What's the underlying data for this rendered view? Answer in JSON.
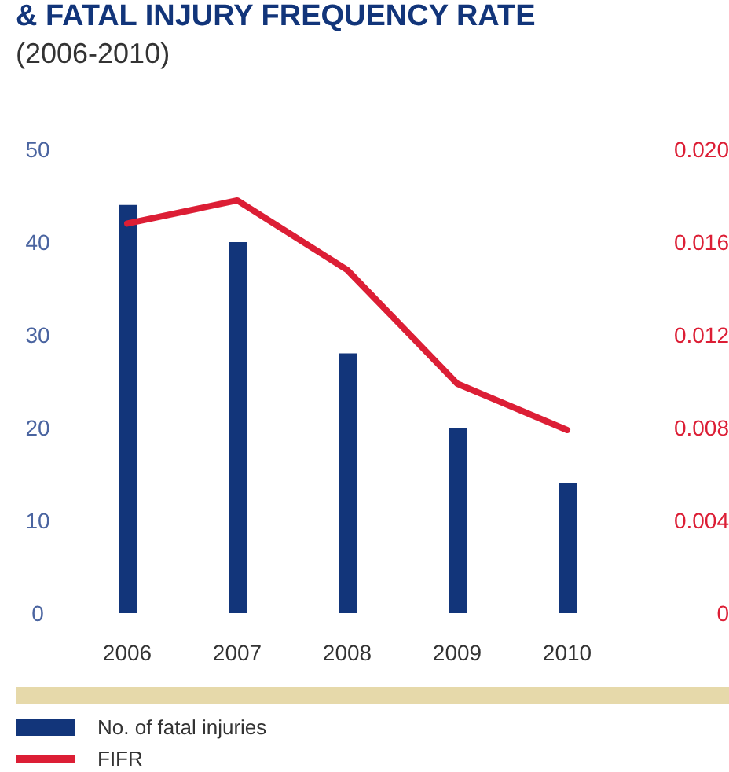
{
  "chart_data": {
    "type": "bar",
    "title": "& FATAL INJURY FREQUENCY RATE",
    "subtitle": "(2006-2010)",
    "categories": [
      "2006",
      "2007",
      "2008",
      "2009",
      "2010"
    ],
    "series": [
      {
        "name": "No. of fatal injuries",
        "color": "#12357a",
        "values": [
          44,
          40,
          28,
          20,
          14
        ]
      },
      {
        "name": "FIFR",
        "type": "line",
        "axis": "y2",
        "color": "#dc1e35",
        "values": [
          0.0168,
          0.0178,
          0.0148,
          0.0099,
          0.0079
        ]
      }
    ],
    "ylim": [
      0,
      50
    ],
    "yticks": [
      0,
      10,
      20,
      30,
      40,
      50
    ],
    "y2lim": [
      0,
      0.02
    ],
    "y2ticks": [
      {
        "value": 0,
        "label": "0"
      },
      {
        "value": 0.004,
        "label": "0.004"
      },
      {
        "value": 0.008,
        "label": "0.008"
      },
      {
        "value": 0.012,
        "label": "0.012"
      },
      {
        "value": 0.016,
        "label": "0.016"
      },
      {
        "value": 0.02,
        "label": "0.020"
      }
    ],
    "grid": false,
    "legend": "bottom",
    "marker": "none",
    "line_style": "solid"
  }
}
